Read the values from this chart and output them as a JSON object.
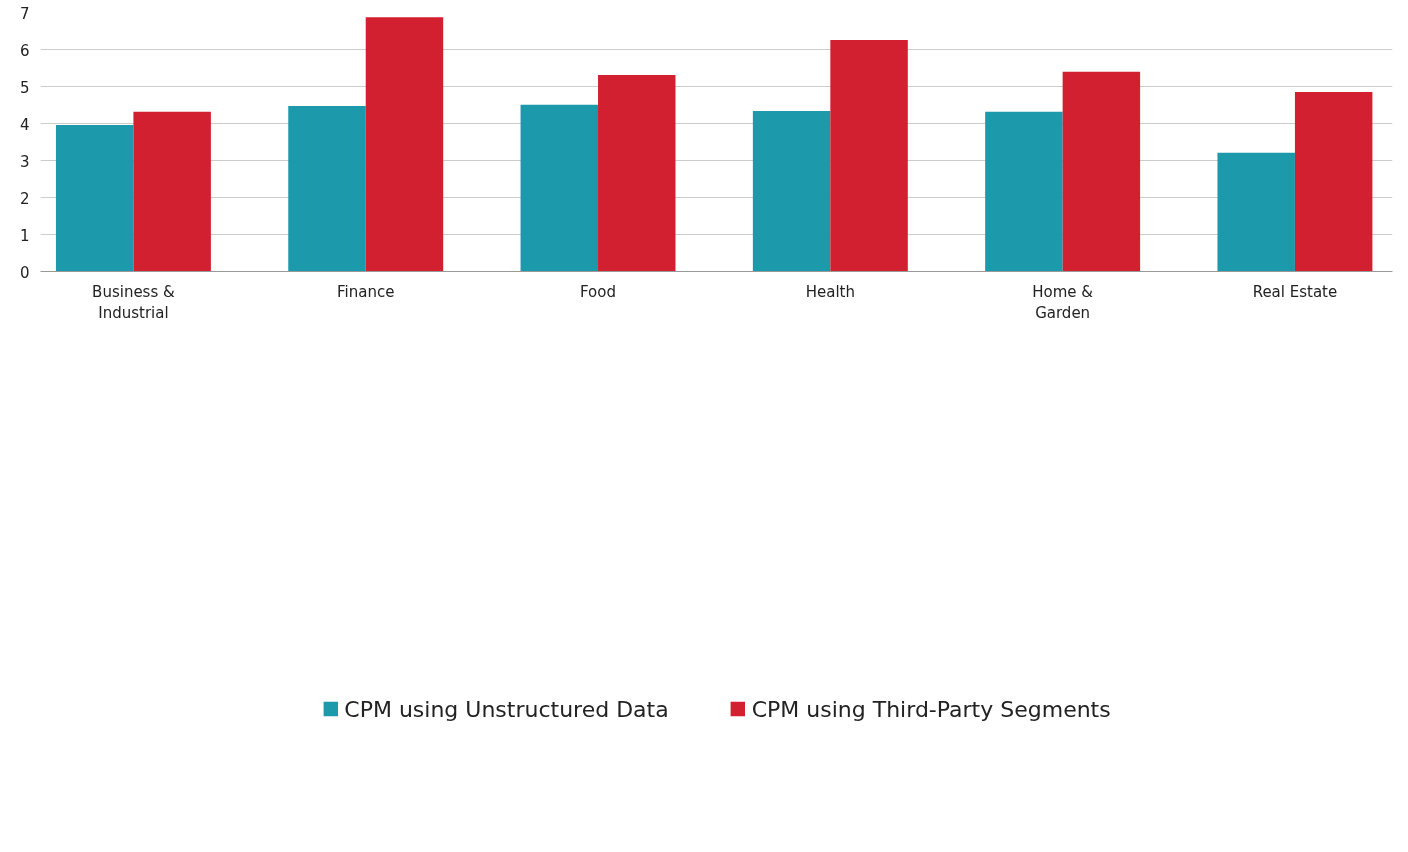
{
  "chart_data": {
    "type": "bar",
    "categories": [
      "Business & Industrial",
      "Finance",
      "Food",
      "Health",
      "Home & Garden",
      "Real Estate"
    ],
    "series": [
      {
        "name": "CPM using Unstructured Data",
        "color": "#1c99aa",
        "values": [
          3.96,
          4.47,
          4.51,
          4.34,
          4.32,
          3.21
        ]
      },
      {
        "name": "CPM using Third-Party Segments",
        "color": "#d22030",
        "values": [
          4.32,
          6.87,
          5.31,
          6.26,
          5.4,
          4.85
        ]
      }
    ],
    "ylim": [
      0,
      7
    ],
    "yticks": [
      0,
      1,
      2,
      3,
      4,
      5,
      6,
      7
    ],
    "grid": "y",
    "legend": "bottom"
  }
}
